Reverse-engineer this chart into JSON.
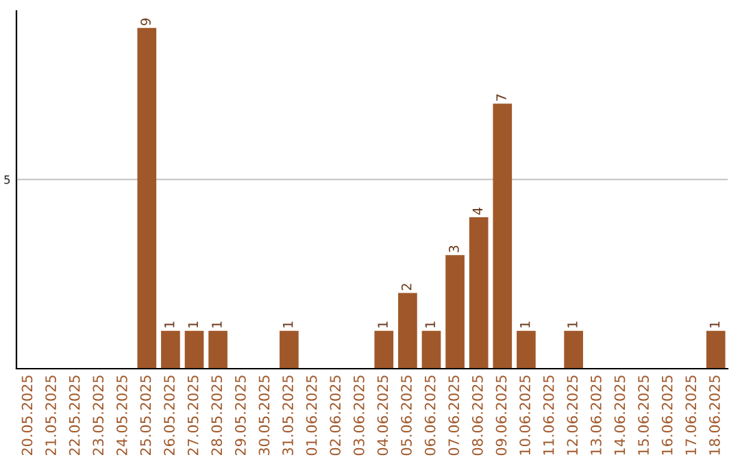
{
  "chart_data": {
    "type": "bar",
    "categories": [
      "20.05.2025",
      "21.05.2025",
      "22.05.2025",
      "23.05.2025",
      "24.05.2025",
      "25.05.2025",
      "26.05.2025",
      "27.05.2025",
      "28.05.2025",
      "29.05.2025",
      "30.05.2025",
      "31.05.2025",
      "01.06.2025",
      "02.06.2025",
      "03.06.2025",
      "04.06.2025",
      "05.06.2025",
      "06.06.2025",
      "07.06.2025",
      "08.06.2025",
      "09.06.2025",
      "10.06.2025",
      "11.06.2025",
      "12.06.2025",
      "13.06.2025",
      "14.06.2025",
      "15.06.2025",
      "16.06.2025",
      "17.06.2025",
      "18.06.2025"
    ],
    "values": [
      null,
      null,
      null,
      null,
      null,
      9,
      1,
      1,
      1,
      null,
      null,
      1,
      null,
      null,
      null,
      1,
      2,
      1,
      3,
      4,
      7,
      1,
      null,
      1,
      null,
      null,
      null,
      null,
      null,
      1
    ],
    "data_labels": true,
    "color": "#a0582a",
    "ylim": [
      0,
      9.45
    ],
    "yticks": [
      5
    ],
    "grid": "y"
  }
}
